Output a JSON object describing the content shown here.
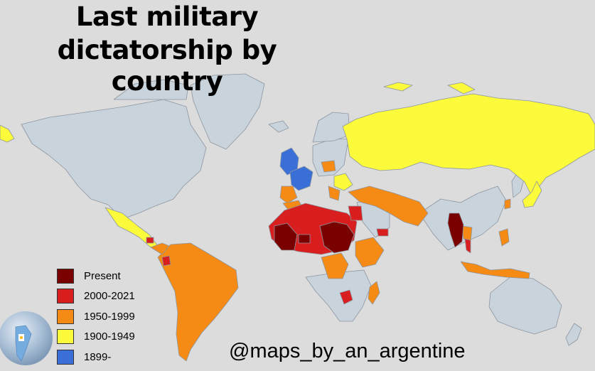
{
  "title": {
    "line1": "Last military",
    "line2": "dictatorship by country"
  },
  "legend": [
    {
      "label": "Present",
      "color": "#7a0000"
    },
    {
      "label": "2000-2021",
      "color": "#d81e1e"
    },
    {
      "label": "1950-1999",
      "color": "#f58a14"
    },
    {
      "label": "1900-1949",
      "color": "#fbfb3c"
    },
    {
      "label": "1899-",
      "color": "#3a6fd8"
    }
  ],
  "credit": "@maps_by_an_argentine",
  "colors": {
    "background": "#dcdcdc",
    "no_dictatorship": "#c9d3dc",
    "border": "#8d96a0"
  },
  "icons": {
    "logo": "globe-argentina-logo-icon"
  }
}
